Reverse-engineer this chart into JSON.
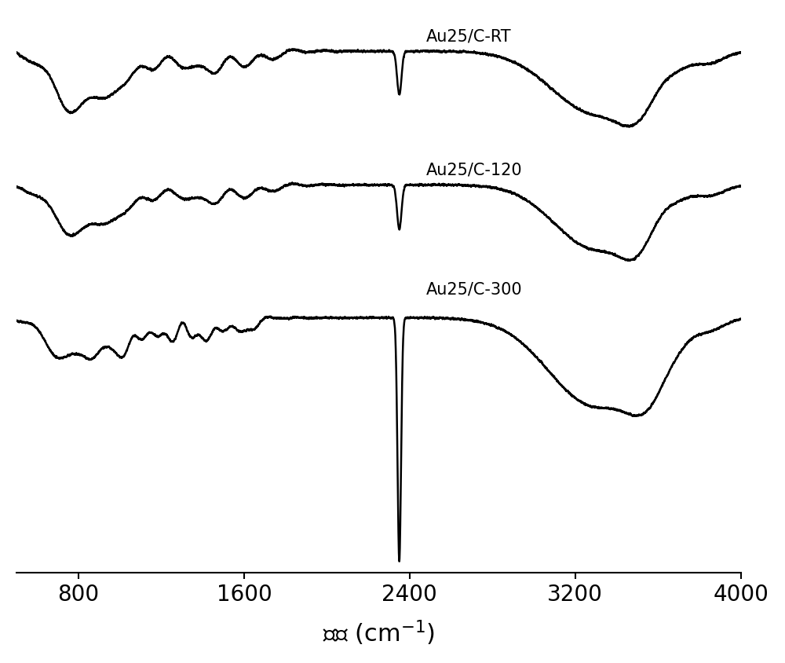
{
  "x_min": 500,
  "x_max": 4000,
  "x_ticks": [
    800,
    1600,
    2400,
    3200,
    4000
  ],
  "xlabel": "波数 (cm$^{-1}$)",
  "background_color": "#ffffff",
  "line_color": "#000000",
  "line_width": 1.8,
  "labels": [
    "Au25/C-RT",
    "Au25/C-120",
    "Au25/C-300"
  ],
  "figsize": [
    10,
    8.45
  ],
  "dpi": 100
}
